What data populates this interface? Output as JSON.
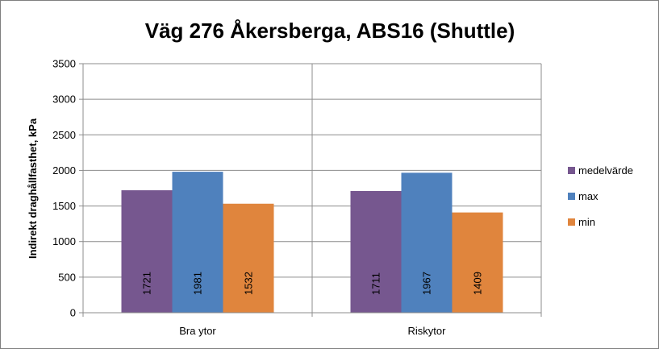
{
  "chart_data": {
    "type": "bar",
    "title": "Väg 276 Åkersberga, ABS16 (Shuttle)",
    "xlabel": "",
    "ylabel": "Indirekt draghållfasthet, kPa",
    "ylim": [
      0,
      3500
    ],
    "yticks": [
      "0",
      "500",
      "1000",
      "1500",
      "2000",
      "2500",
      "3000",
      "3500"
    ],
    "categories": [
      "Bra ytor",
      "Riskytor"
    ],
    "series": [
      {
        "name": "medelvärde",
        "color": "#76578f",
        "values": [
          1721,
          1711
        ],
        "labels": [
          "1721",
          "1711"
        ]
      },
      {
        "name": "max",
        "color": "#4f81bd",
        "values": [
          1981,
          1967
        ],
        "labels": [
          "1981",
          "1967"
        ]
      },
      {
        "name": "min",
        "color": "#e0853d",
        "values": [
          1532,
          1409
        ],
        "labels": [
          "1532",
          "1409"
        ]
      }
    ],
    "grid": true,
    "legend_position": "right"
  }
}
